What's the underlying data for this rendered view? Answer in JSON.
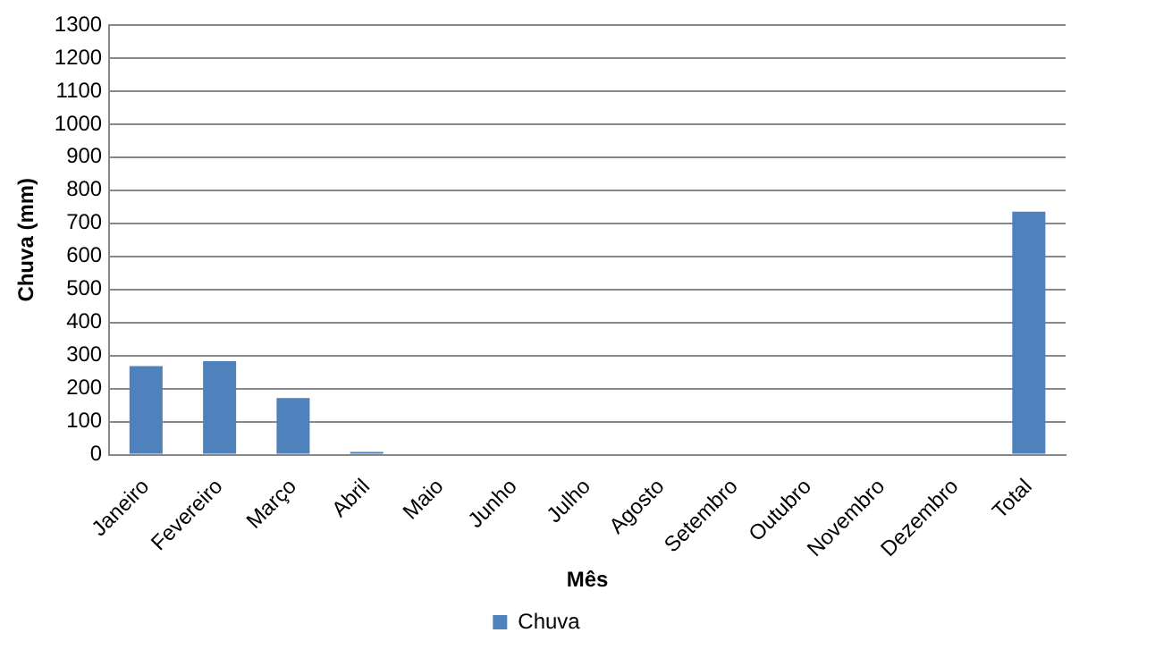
{
  "chart_data": {
    "type": "bar",
    "xlabel": "Mês",
    "ylabel": "Chuva (mm)",
    "categories": [
      "Janeiro",
      "Fevereiro",
      "Março",
      "Abril",
      "Maio",
      "Junho",
      "Julho",
      "Agosto",
      "Setembro",
      "Outubro",
      "Novembro",
      "Dezembro",
      "Total"
    ],
    "series": [
      {
        "name": "Chuva",
        "color": "#4f81bd",
        "values": [
          268,
          283,
          171,
          8,
          0,
          0,
          0,
          0,
          0,
          0,
          0,
          0,
          735
        ]
      }
    ],
    "ylim": [
      0,
      1300
    ],
    "yticks": [
      0,
      100,
      200,
      300,
      400,
      500,
      600,
      700,
      800,
      900,
      1000,
      1100,
      1200,
      1300
    ],
    "grid": "y",
    "legend": "bottom"
  }
}
